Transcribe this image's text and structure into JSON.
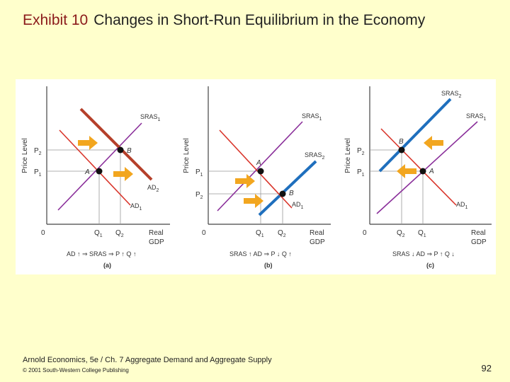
{
  "slide": {
    "exhibit_label": "Exhibit 10",
    "title": "Changes in Short-Run Equilibrium in the Economy",
    "footer_source": "Arnold Economics, 5e / Ch. 7 Aggregate Demand and Aggregate Supply",
    "footer_copyright": "© 2001 South-Western College Publishing",
    "page_number": "92"
  },
  "colors": {
    "background": "#ffffcc",
    "ad_line": "#d9352b",
    "ad_shifted": "#b5402b",
    "sras_line": "#8a2f9a",
    "sras_shifted": "#1f6fbd",
    "shift_arrow": "#f2a61f",
    "axis": "#444444"
  },
  "panels": [
    {
      "id": "a",
      "label": "(a)",
      "y_axis_label": "Price Level",
      "x_axis_label_1": "Real",
      "x_axis_label_2": "GDP",
      "origin": "0",
      "price_labels": [
        {
          "text": "P",
          "sub": "2"
        },
        {
          "text": "P",
          "sub": "1"
        }
      ],
      "quantity_labels": [
        {
          "text": "Q",
          "sub": "1"
        },
        {
          "text": "Q",
          "sub": "2"
        }
      ],
      "curves": [
        {
          "name": "SRAS",
          "sub": "1"
        },
        {
          "name": "AD",
          "sub": "2"
        },
        {
          "name": "AD",
          "sub": "1"
        }
      ],
      "points": [
        "A",
        "B"
      ],
      "caption": "AD ↑ ⇒ SRAS ⇒ P ↑ Q ↑"
    },
    {
      "id": "b",
      "label": "(b)",
      "y_axis_label": "Price Level",
      "x_axis_label_1": "Real",
      "x_axis_label_2": "GDP",
      "origin": "0",
      "price_labels": [
        {
          "text": "P",
          "sub": "1"
        },
        {
          "text": "P",
          "sub": "2"
        }
      ],
      "quantity_labels": [
        {
          "text": "Q",
          "sub": "1"
        },
        {
          "text": "Q",
          "sub": "2"
        }
      ],
      "curves": [
        {
          "name": "SRAS",
          "sub": "1"
        },
        {
          "name": "SRAS",
          "sub": "2"
        },
        {
          "name": "AD",
          "sub": "1"
        }
      ],
      "points": [
        "A",
        "B"
      ],
      "caption": "SRAS ↑ AD ⇒ P ↓ Q ↑"
    },
    {
      "id": "c",
      "label": "(c)",
      "y_axis_label": "Price Level",
      "x_axis_label_1": "Real",
      "x_axis_label_2": "GDP",
      "origin": "0",
      "price_labels": [
        {
          "text": "P",
          "sub": "2"
        },
        {
          "text": "P",
          "sub": "1"
        }
      ],
      "quantity_labels": [
        {
          "text": "Q",
          "sub": "2"
        },
        {
          "text": "Q",
          "sub": "1"
        }
      ],
      "curves": [
        {
          "name": "SRAS",
          "sub": "2"
        },
        {
          "name": "SRAS",
          "sub": "1"
        },
        {
          "name": "AD",
          "sub": "1"
        }
      ],
      "points": [
        "B",
        "A"
      ],
      "caption": "SRAS ↓ AD ⇒ P ↑ Q ↓"
    }
  ]
}
